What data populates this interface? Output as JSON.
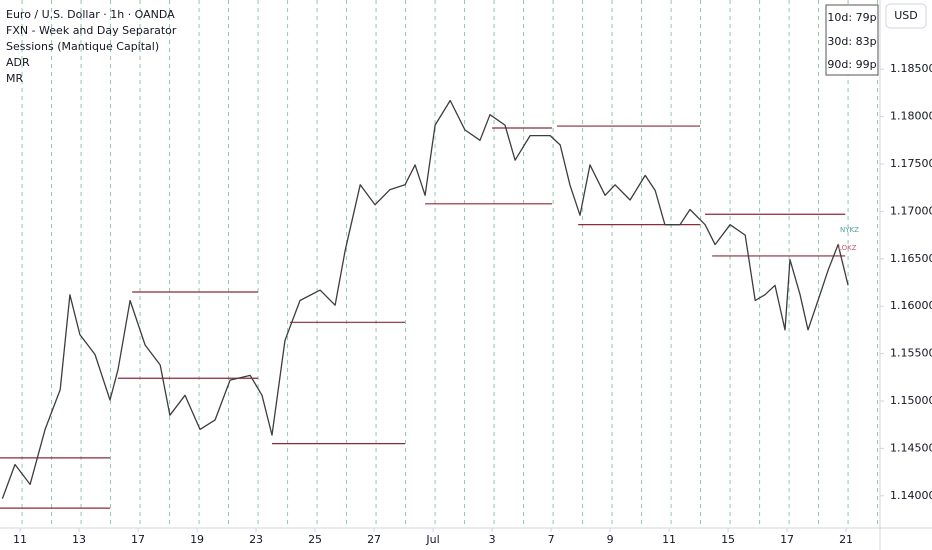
{
  "chart_data": {
    "type": "line",
    "title": "Euro / U.S. Dollar · 1h · OANDA",
    "indicators": [
      "FXN - Week and Day Separator",
      "Sessions (Mantique Capital)",
      "ADR",
      "MR"
    ],
    "adr_stats": [
      "10d: 79p",
      "30d: 83p",
      "90d: 99p"
    ],
    "currency": "USD",
    "annotations": [
      "NYKZ",
      "LOKZ"
    ],
    "xlim": [
      -0.68,
      29.15
    ],
    "ylim": [
      1.1366,
      1.1923
    ],
    "xticks": [
      {
        "value": 0,
        "label": "11"
      },
      {
        "value": 2,
        "label": "13"
      },
      {
        "value": 4,
        "label": "17"
      },
      {
        "value": 6,
        "label": "19"
      },
      {
        "value": 8,
        "label": "23"
      },
      {
        "value": 10,
        "label": "25"
      },
      {
        "value": 12,
        "label": "27"
      },
      {
        "value": 14,
        "label": "Jul"
      },
      {
        "value": 16,
        "label": "3"
      },
      {
        "value": 18,
        "label": "7"
      },
      {
        "value": 20,
        "label": "9"
      },
      {
        "value": 22,
        "label": "11"
      },
      {
        "value": 24,
        "label": "15"
      },
      {
        "value": 26,
        "label": "17"
      },
      {
        "value": 28,
        "label": "21"
      }
    ],
    "yticks": [
      {
        "value": 1.14,
        "label": "1.14000"
      },
      {
        "value": 1.145,
        "label": "1.14500"
      },
      {
        "value": 1.15,
        "label": "1.15000"
      },
      {
        "value": 1.155,
        "label": "1.15500"
      },
      {
        "value": 1.16,
        "label": "1.16000"
      },
      {
        "value": 1.165,
        "label": "1.16500"
      },
      {
        "value": 1.17,
        "label": "1.17000"
      },
      {
        "value": 1.175,
        "label": "1.17500"
      },
      {
        "value": 1.18,
        "label": "1.18000"
      },
      {
        "value": 1.185,
        "label": "1.18500"
      }
    ],
    "series": [
      {
        "name": "EURUSD",
        "color": "#3d3d3d",
        "x": [
          -0.6,
          -0.17,
          0.34,
          0.85,
          1.36,
          1.69,
          2.03,
          2.54,
          3.05,
          3.32,
          3.73,
          4.24,
          4.75,
          5.08,
          5.59,
          6.1,
          6.61,
          7.12,
          7.8,
          8.2,
          8.54,
          8.98,
          9.49,
          10.17,
          10.68,
          11.02,
          11.53,
          12.03,
          12.54,
          13.05,
          13.39,
          13.73,
          14.07,
          14.58,
          15.08,
          15.59,
          15.93,
          16.44,
          16.78,
          17.29,
          17.97,
          18.31,
          18.64,
          18.98,
          19.32,
          19.83,
          20.17,
          20.68,
          21.19,
          21.53,
          21.86,
          22.37,
          22.71,
          23.22,
          23.56,
          24.07,
          24.58,
          24.92,
          25.25,
          25.59,
          25.93,
          26.1,
          26.44,
          26.71,
          27.05,
          27.39,
          27.73,
          28.07
        ],
        "values": [
          1.1397,
          1.1433,
          1.1412,
          1.147,
          1.1512,
          1.1612,
          1.157,
          1.1549,
          1.1501,
          1.1533,
          1.1606,
          1.1559,
          1.1538,
          1.1485,
          1.1506,
          1.147,
          1.148,
          1.1522,
          1.1527,
          1.1506,
          1.1464,
          1.1564,
          1.1606,
          1.1617,
          1.1601,
          1.1659,
          1.1728,
          1.1707,
          1.1723,
          1.1728,
          1.1749,
          1.1717,
          1.1791,
          1.1817,
          1.1786,
          1.1775,
          1.1802,
          1.1791,
          1.1754,
          1.178,
          1.178,
          1.177,
          1.1728,
          1.1696,
          1.1749,
          1.1717,
          1.1728,
          1.1712,
          1.1738,
          1.1722,
          1.1686,
          1.1686,
          1.1702,
          1.1686,
          1.1665,
          1.1686,
          1.1675,
          1.1606,
          1.1612,
          1.1622,
          1.1575,
          1.1649,
          1.1612,
          1.1575,
          1.1606,
          1.1638,
          1.1665,
          1.1622
        ]
      }
    ],
    "levels": {
      "color": "#8b2a3a",
      "items": [
        {
          "x": [
            -0.68,
            3.05
          ],
          "value": 1.144
        },
        {
          "x": [
            -0.68,
            3.05
          ],
          "value": 1.1387
        },
        {
          "x": [
            3.8,
            8.07
          ],
          "value": 1.1615
        },
        {
          "x": [
            3.32,
            8.07
          ],
          "value": 1.1524
        },
        {
          "x": [
            9.15,
            13.05
          ],
          "value": 1.1583
        },
        {
          "x": [
            8.54,
            13.05
          ],
          "value": 1.1455
        },
        {
          "x": [
            13.73,
            18.03
          ],
          "value": 1.1708
        },
        {
          "x": [
            16.0,
            18.03
          ],
          "value": 1.1788
        },
        {
          "x": [
            18.2,
            23.05
          ],
          "value": 1.179
        },
        {
          "x": [
            18.92,
            23.05
          ],
          "value": 1.1686
        },
        {
          "x": [
            23.22,
            27.97
          ],
          "value": 1.1697
        },
        {
          "x": [
            23.46,
            27.97
          ],
          "value": 1.1653
        }
      ]
    }
  }
}
